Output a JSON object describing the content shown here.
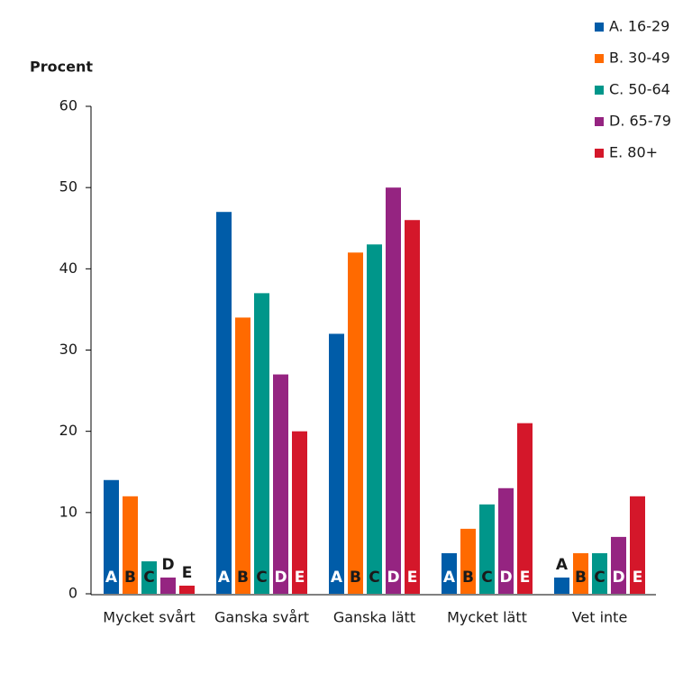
{
  "chart_data": {
    "type": "bar",
    "y_label": "Procent",
    "categories": [
      "Mycket svårt",
      "Ganska svårt",
      "Ganska lätt",
      "Mycket lätt",
      "Vet inte"
    ],
    "series": [
      {
        "name": "A. 16-29",
        "bar_label": "A",
        "color": "#005ca8",
        "label_color": "#ffffff",
        "values": [
          14,
          47,
          32,
          5,
          2
        ]
      },
      {
        "name": "B. 30-49",
        "bar_label": "B",
        "color": "#ff6a00",
        "label_color": "#1a1a1a",
        "values": [
          12,
          34,
          42,
          8,
          5
        ]
      },
      {
        "name": "C. 50-64",
        "bar_label": "C",
        "color": "#00968a",
        "label_color": "#1a1a1a",
        "values": [
          4,
          37,
          43,
          11,
          5
        ]
      },
      {
        "name": "D. 65-79",
        "bar_label": "D",
        "color": "#952481",
        "label_color": "#ffffff",
        "values": [
          2,
          27,
          50,
          13,
          7
        ]
      },
      {
        "name": "E. 80+",
        "bar_label": "E",
        "color": "#d4172a",
        "label_color": "#ffffff",
        "values": [
          1,
          20,
          46,
          21,
          12
        ]
      }
    ],
    "ylim": [
      0,
      60
    ],
    "yticks": [
      0,
      10,
      20,
      30,
      40,
      50,
      60
    ],
    "grid": false,
    "legend": "top-right"
  }
}
